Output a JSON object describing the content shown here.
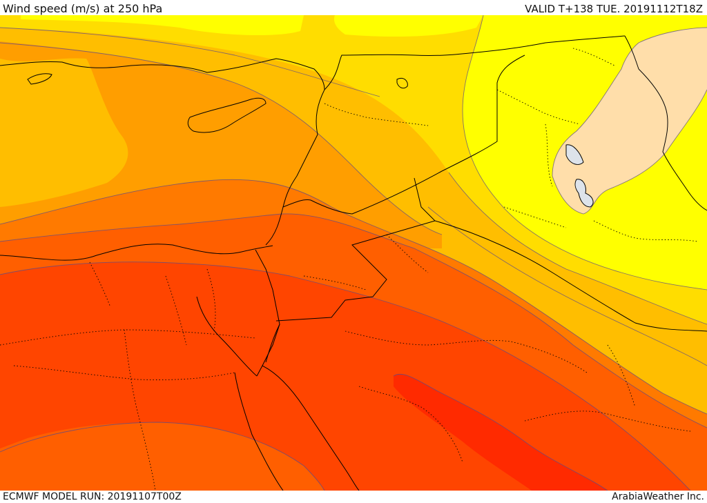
{
  "header": {
    "title": "Wind speed (m/s) at 250 hPa",
    "valid_time": "VALID T+138 TUE. 20191112T18Z"
  },
  "footer": {
    "model_run": "ECMWF MODEL RUN: 20191107T00Z",
    "credit": "ArabiaWeather Inc."
  },
  "map": {
    "field": "wind speed",
    "pressure_level_hpa": 250,
    "units": "m/s",
    "colors": {
      "light_tan": "#FFDEAA",
      "yellow": "#FFFF00",
      "gold": "#FFDD00",
      "amber": "#FFBE00",
      "orange_light": "#FF9E00",
      "orange": "#FF7A00",
      "orange_red": "#FF5F00",
      "red_orange": "#FF4500",
      "red": "#FF2A00"
    },
    "boundary_color": "#000000",
    "isoline_color": "#5a4a8a"
  }
}
